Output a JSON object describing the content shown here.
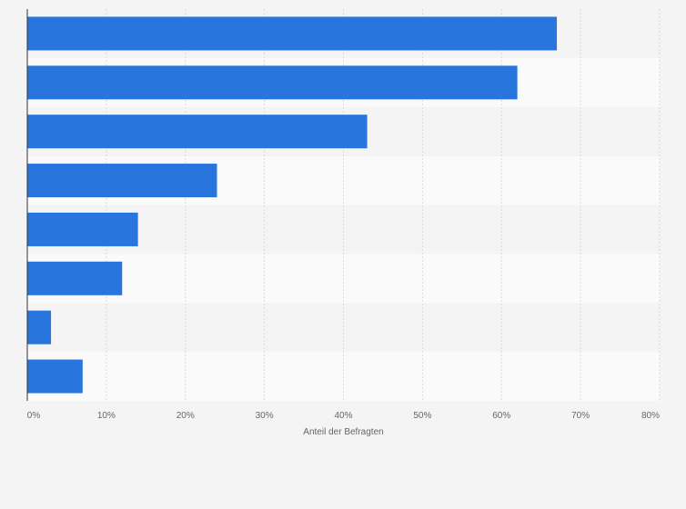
{
  "chart_data": {
    "type": "bar",
    "orientation": "horizontal",
    "title": "",
    "xlabel": "Anteil der Befragten",
    "ylabel": "",
    "xlim": [
      0,
      80
    ],
    "x_ticks": [
      "0%",
      "10%",
      "20%",
      "30%",
      "40%",
      "50%",
      "60%",
      "70%",
      "80%"
    ],
    "grid": true,
    "legend": "none",
    "categories": [
      "",
      "",
      "",
      "",
      "",
      "",
      "",
      ""
    ],
    "values": [
      67,
      62,
      43,
      24,
      14,
      12,
      3,
      7
    ],
    "bar_color": "#2876dd",
    "band_colors": [
      "#f4f4f4",
      "#fafafa"
    ]
  }
}
